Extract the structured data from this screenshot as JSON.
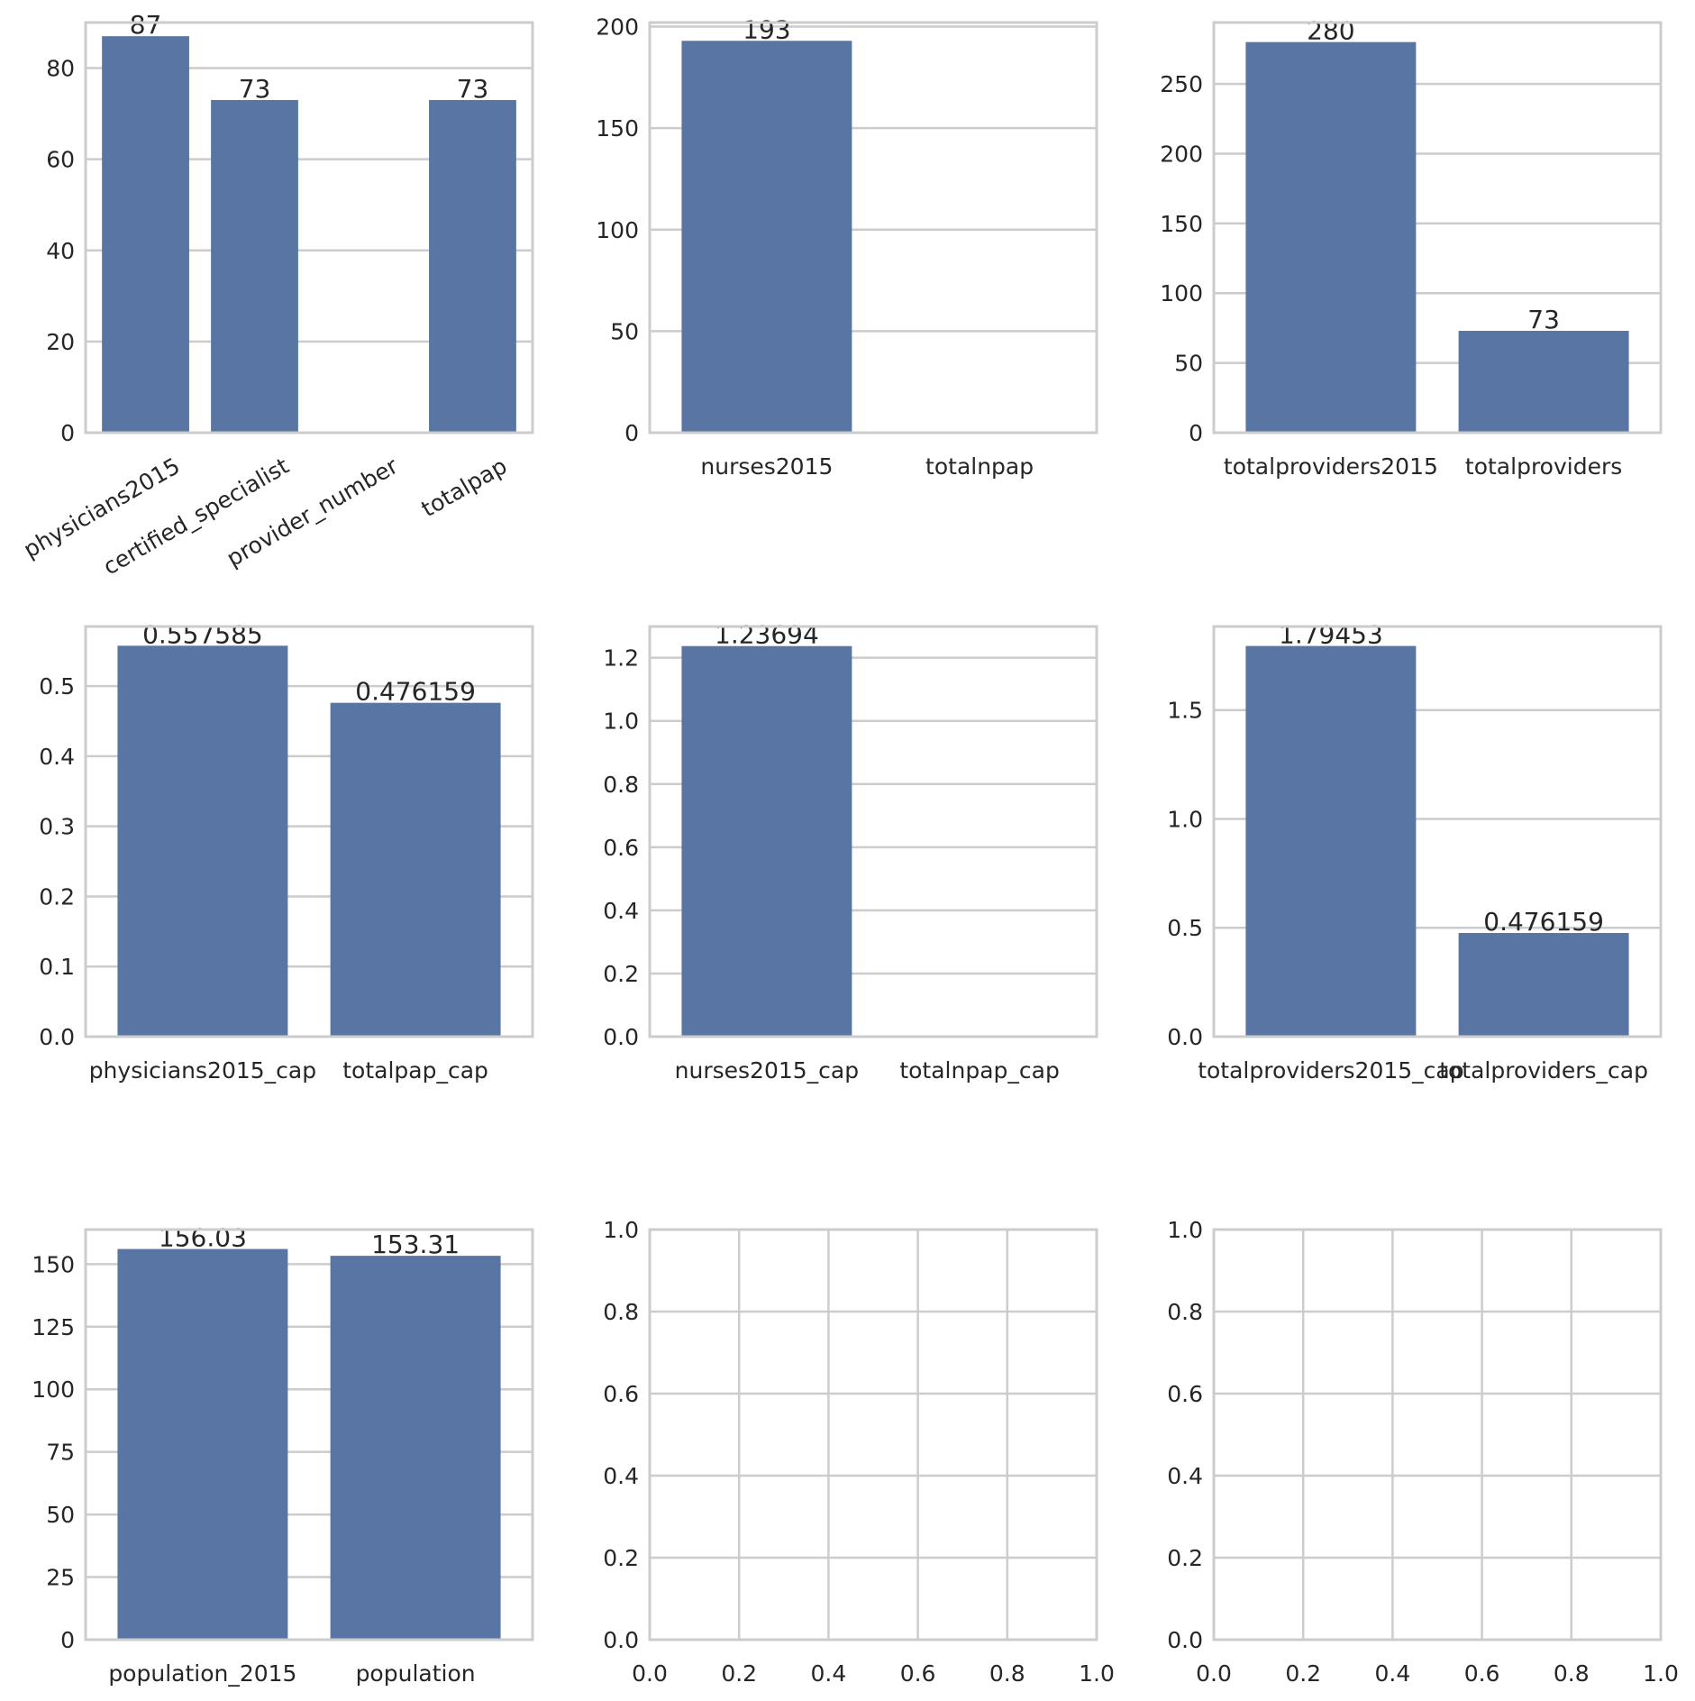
{
  "figure": {
    "background": "#ffffff",
    "grid_color": "#cccccc",
    "bar_color": "#5975a4",
    "text_color": "#262626"
  },
  "chart_data": [
    {
      "type": "bar",
      "categories": [
        "physicians2015",
        "certified_specialist",
        "provider_number",
        "totalpap"
      ],
      "values": [
        87,
        73,
        null,
        73
      ],
      "labels": [
        "87",
        "73",
        null,
        "73"
      ],
      "ylim": [
        0,
        90
      ],
      "yticks": [
        0,
        20,
        40,
        60,
        80
      ],
      "ytick_labels": [
        "0",
        "20",
        "40",
        "60",
        "80"
      ],
      "xtick_rotation": 30,
      "grid": true
    },
    {
      "type": "bar",
      "categories": [
        "nurses2015",
        "totalnpap"
      ],
      "values": [
        193,
        null
      ],
      "labels": [
        "193",
        null
      ],
      "ylim": [
        0,
        202
      ],
      "yticks": [
        0,
        50,
        100,
        150,
        200
      ],
      "ytick_labels": [
        "0",
        "50",
        "100",
        "150",
        "200"
      ],
      "grid": true
    },
    {
      "type": "bar",
      "categories": [
        "totalproviders2015",
        "totalproviders"
      ],
      "values": [
        280,
        73
      ],
      "labels": [
        "280",
        "73"
      ],
      "ylim": [
        0,
        294
      ],
      "yticks": [
        0,
        50,
        100,
        150,
        200,
        250
      ],
      "ytick_labels": [
        "0",
        "50",
        "100",
        "150",
        "200",
        "250"
      ],
      "grid": true
    },
    {
      "type": "bar",
      "categories": [
        "physicians2015_cap",
        "totalpap_cap"
      ],
      "values": [
        0.557585,
        0.476159
      ],
      "labels": [
        "0.557585",
        "0.476159"
      ],
      "ylim": [
        0,
        0.585
      ],
      "yticks": [
        0,
        0.1,
        0.2,
        0.3,
        0.4,
        0.5
      ],
      "ytick_labels": [
        "0.0",
        "0.1",
        "0.2",
        "0.3",
        "0.4",
        "0.5"
      ],
      "grid": true
    },
    {
      "type": "bar",
      "categories": [
        "nurses2015_cap",
        "totalnpap_cap"
      ],
      "values": [
        1.23694,
        null
      ],
      "labels": [
        "1.23694",
        null
      ],
      "ylim": [
        0,
        1.299
      ],
      "yticks": [
        0,
        0.2,
        0.4,
        0.6,
        0.8,
        1.0,
        1.2
      ],
      "ytick_labels": [
        "0.0",
        "0.2",
        "0.4",
        "0.6",
        "0.8",
        "1.0",
        "1.2"
      ],
      "grid": true
    },
    {
      "type": "bar",
      "categories": [
        "totalproviders2015_cap",
        "totalproviders_cap"
      ],
      "values": [
        1.79453,
        0.476159
      ],
      "labels": [
        "1.79453",
        "0.476159"
      ],
      "ylim": [
        0,
        1.884
      ],
      "yticks": [
        0,
        0.5,
        1.0,
        1.5
      ],
      "ytick_labels": [
        "0.0",
        "0.5",
        "1.0",
        "1.5"
      ],
      "grid": true
    },
    {
      "type": "bar",
      "categories": [
        "population_2015",
        "population"
      ],
      "values": [
        156.03,
        153.31
      ],
      "labels": [
        "156.03",
        "153.31"
      ],
      "ylim": [
        0,
        163.8
      ],
      "yticks": [
        0,
        25,
        50,
        75,
        100,
        125,
        150
      ],
      "ytick_labels": [
        "0",
        "25",
        "50",
        "75",
        "100",
        "125",
        "150"
      ],
      "grid": true
    },
    {
      "type": "empty",
      "xlim": [
        0,
        1
      ],
      "ylim": [
        0,
        1
      ],
      "xticks": [
        0,
        0.2,
        0.4,
        0.6,
        0.8,
        1.0
      ],
      "xtick_labels": [
        "0.0",
        "0.2",
        "0.4",
        "0.6",
        "0.8",
        "1.0"
      ],
      "yticks": [
        0,
        0.2,
        0.4,
        0.6,
        0.8,
        1.0
      ],
      "ytick_labels": [
        "0.0",
        "0.2",
        "0.4",
        "0.6",
        "0.8",
        "1.0"
      ],
      "grid": true
    },
    {
      "type": "empty",
      "xlim": [
        0,
        1
      ],
      "ylim": [
        0,
        1
      ],
      "xticks": [
        0,
        0.2,
        0.4,
        0.6,
        0.8,
        1.0
      ],
      "xtick_labels": [
        "0.0",
        "0.2",
        "0.4",
        "0.6",
        "0.8",
        "1.0"
      ],
      "yticks": [
        0,
        0.2,
        0.4,
        0.6,
        0.8,
        1.0
      ],
      "ytick_labels": [
        "0.0",
        "0.2",
        "0.4",
        "0.6",
        "0.8",
        "1.0"
      ],
      "grid": true
    }
  ]
}
